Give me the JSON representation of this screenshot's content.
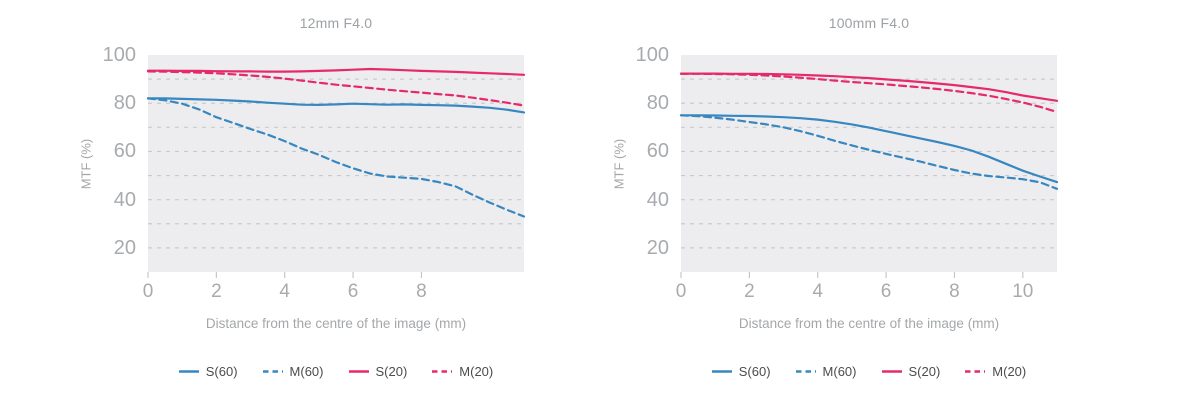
{
  "figure": {
    "background": "#ffffff"
  },
  "colors": {
    "blue": "#3787c0",
    "pink": "#e62a69",
    "panel_bg": "#ededef",
    "grid": "#c7cbcf",
    "tick": "#c4c7ca",
    "axis_text": "#a8abae",
    "legend_text": "#4b4c4e"
  },
  "chart_data": [
    {
      "type": "line",
      "title": "12mm F4.0",
      "xlabel": "Distance from the centre of the image (mm)",
      "ylabel": "MTF (%)",
      "xlim": [
        0,
        11
      ],
      "ylim": [
        10,
        100
      ],
      "xticks": [
        0,
        2,
        4,
        6,
        8
      ],
      "yticks": [
        100,
        80,
        60,
        40,
        20
      ],
      "grid_y": [
        90,
        80,
        70,
        60,
        50,
        40,
        30,
        20
      ],
      "grid": "dashed-horizontal",
      "legend_position": "bottom-center",
      "x": [
        0,
        0.5,
        1,
        1.5,
        2,
        2.5,
        3,
        3.5,
        4,
        4.5,
        5,
        5.5,
        6,
        6.5,
        7,
        7.5,
        8,
        8.5,
        9,
        9.5,
        10,
        10.5,
        11
      ],
      "series": [
        {
          "name": "S(60)",
          "color_key": "blue",
          "dashed": false,
          "values": [
            82,
            82,
            81.8,
            81.6,
            81.4,
            81.1,
            80.7,
            80.2,
            79.8,
            79.4,
            79.3,
            79.5,
            79.8,
            79.6,
            79.4,
            79.5,
            79.3,
            79.2,
            79,
            78.6,
            78.1,
            77.3,
            76.2
          ]
        },
        {
          "name": "M(60)",
          "color_key": "blue",
          "dashed": true,
          "values": [
            82,
            81.2,
            79.8,
            77.4,
            74.2,
            71.8,
            69.3,
            67,
            64.3,
            61.2,
            58.6,
            55.6,
            53,
            50.8,
            49.6,
            49.1,
            48.6,
            47.3,
            45.5,
            42,
            38.8,
            35.8,
            33
          ]
        },
        {
          "name": "S(20)",
          "color_key": "pink",
          "dashed": false,
          "values": [
            93.5,
            93.5,
            93.4,
            93.4,
            93.3,
            93.2,
            93.2,
            93.1,
            93.1,
            93.2,
            93.4,
            93.6,
            93.9,
            94.2,
            94,
            93.7,
            93.4,
            93.2,
            93,
            92.7,
            92.4,
            92.1,
            91.8
          ]
        },
        {
          "name": "M(20)",
          "color_key": "pink",
          "dashed": true,
          "values": [
            93.2,
            93.1,
            92.9,
            92.7,
            92.4,
            92,
            91.5,
            90.9,
            90.2,
            89.4,
            88.5,
            87.7,
            87,
            86.3,
            85.6,
            85,
            84.4,
            83.8,
            83.2,
            82.3,
            81.3,
            80.2,
            79
          ]
        }
      ]
    },
    {
      "type": "line",
      "title": "100mm F4.0",
      "xlabel": "Distance from the centre of the image (mm)",
      "ylabel": "MTF (%)",
      "xlim": [
        0,
        11
      ],
      "ylim": [
        10,
        100
      ],
      "xticks": [
        0,
        2,
        4,
        6,
        8,
        10
      ],
      "yticks": [
        100,
        80,
        60,
        40,
        20
      ],
      "grid_y": [
        90,
        80,
        70,
        60,
        50,
        40,
        30,
        20
      ],
      "grid": "dashed-horizontal",
      "legend_position": "bottom-center",
      "x": [
        0,
        0.5,
        1,
        1.5,
        2,
        2.5,
        3,
        3.5,
        4,
        4.5,
        5,
        5.5,
        6,
        6.5,
        7,
        7.5,
        8,
        8.5,
        9,
        9.5,
        10,
        10.5,
        11
      ],
      "series": [
        {
          "name": "S(60)",
          "color_key": "blue",
          "dashed": false,
          "values": [
            75,
            75,
            74.9,
            74.8,
            74.7,
            74.5,
            74.2,
            73.8,
            73.2,
            72.3,
            71.2,
            69.9,
            68.4,
            66.9,
            65.4,
            63.9,
            62.3,
            60.4,
            57.8,
            54.9,
            52,
            49.6,
            47.3
          ]
        },
        {
          "name": "M(60)",
          "color_key": "blue",
          "dashed": true,
          "values": [
            75,
            74.6,
            74,
            73.2,
            72.2,
            71.2,
            70,
            68.4,
            66.5,
            64.4,
            62.5,
            60.7,
            59,
            57.4,
            55.8,
            54,
            52.3,
            50.8,
            49.8,
            49.2,
            48.5,
            47.2,
            44.5
          ]
        },
        {
          "name": "S(20)",
          "color_key": "pink",
          "dashed": false,
          "values": [
            92.3,
            92.3,
            92.3,
            92.2,
            92.2,
            92.1,
            92,
            91.8,
            91.5,
            91.2,
            90.8,
            90.4,
            89.9,
            89.4,
            88.8,
            88.2,
            87.5,
            86.7,
            85.8,
            84.6,
            83.2,
            82.1,
            81
          ]
        },
        {
          "name": "M(20)",
          "color_key": "pink",
          "dashed": true,
          "values": [
            92.2,
            92.2,
            92.1,
            92,
            91.8,
            91.5,
            91.1,
            90.6,
            90,
            89.4,
            88.8,
            88.3,
            87.8,
            87.2,
            86.6,
            85.9,
            85.1,
            84.2,
            83.1,
            81.8,
            80.3,
            78.5,
            76.4
          ]
        }
      ]
    }
  ]
}
